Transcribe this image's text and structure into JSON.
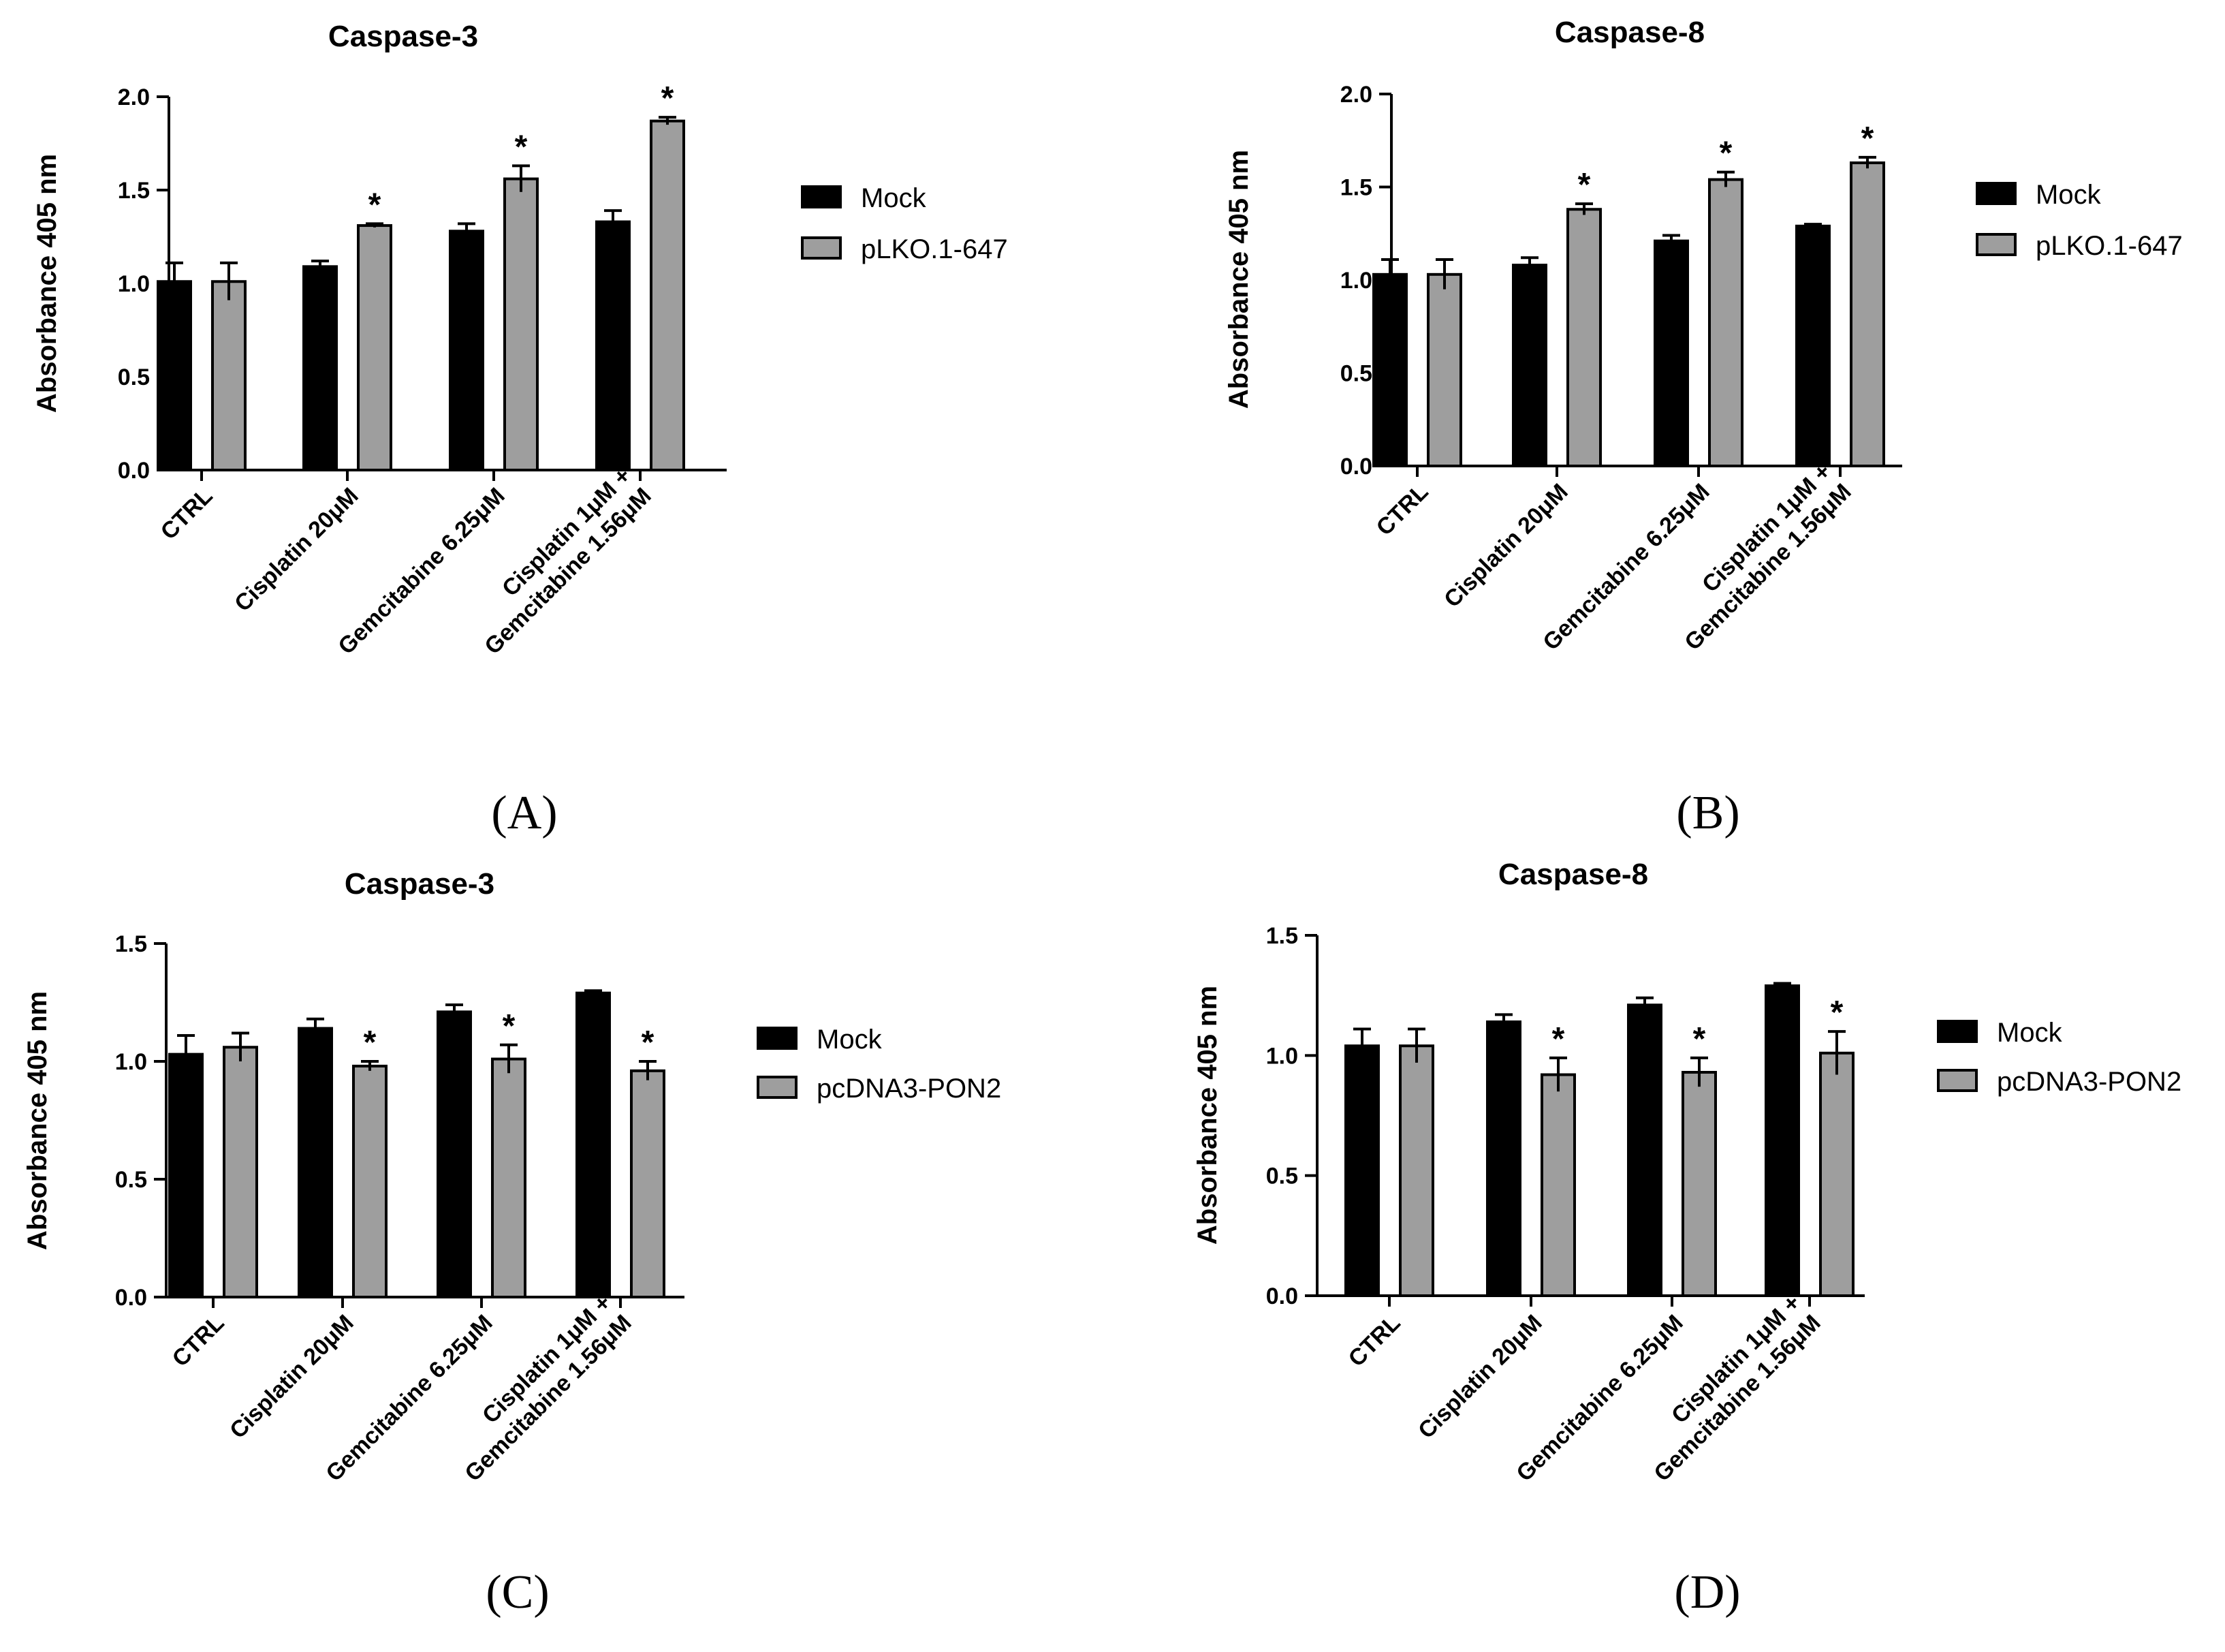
{
  "colors": {
    "mock": "#000000",
    "treated": "#9e9e9e",
    "axis": "#000000"
  },
  "chart_data": [
    {
      "type": "bar",
      "panel": "(A)",
      "title": "Caspase-3",
      "ylabel": "Absorbance 405 nm",
      "xlabel": "",
      "ylim": [
        0,
        2.0
      ],
      "yticks": [
        "0.0",
        "0.5",
        "1.0",
        "1.5",
        "2.0"
      ],
      "legend_position": "right",
      "categories": [
        [
          "CTRL"
        ],
        [
          "Cisplatin 20μM"
        ],
        [
          "Gemcitabine 6.25μM"
        ],
        [
          "Cisplatin 1μM +",
          "Gemcitabine 1.56μM"
        ]
      ],
      "series": [
        {
          "name": "Mock",
          "values": [
            1.01,
            1.09,
            1.28,
            1.33
          ],
          "errors": [
            0.1,
            0.03,
            0.04,
            0.06
          ],
          "marks": [
            "",
            "",
            "",
            ""
          ]
        },
        {
          "name": "pLKO.1-647",
          "values": [
            1.01,
            1.31,
            1.56,
            1.87
          ],
          "errors": [
            0.1,
            0.01,
            0.07,
            0.02
          ],
          "marks": [
            "",
            "*",
            "*",
            "*"
          ]
        }
      ]
    },
    {
      "type": "bar",
      "panel": "(B)",
      "title": "Caspase-8",
      "ylabel": "Absorbance 405 nm",
      "xlabel": "",
      "ylim": [
        0,
        2.0
      ],
      "yticks": [
        "0.0",
        "0.5",
        "1.0",
        "1.5",
        "2.0"
      ],
      "legend_position": "right",
      "categories": [
        [
          "CTRL"
        ],
        [
          "Cisplatin 20μM"
        ],
        [
          "Gemcitabine 6.25μM"
        ],
        [
          "Cisplatin 1μM +",
          "Gemcitabine 1.56μM"
        ]
      ],
      "series": [
        {
          "name": "Mock",
          "values": [
            1.03,
            1.08,
            1.21,
            1.29
          ],
          "errors": [
            0.08,
            0.04,
            0.03,
            0.01
          ],
          "marks": [
            "",
            "",
            "",
            ""
          ]
        },
        {
          "name": "pLKO.1-647",
          "values": [
            1.03,
            1.38,
            1.54,
            1.63
          ],
          "errors": [
            0.08,
            0.03,
            0.04,
            0.03
          ],
          "marks": [
            "",
            "*",
            "*",
            "*"
          ]
        }
      ]
    },
    {
      "type": "bar",
      "panel": "(C)",
      "title": "Caspase-3",
      "ylabel": "Absorbance 405 nm",
      "xlabel": "",
      "ylim": [
        0,
        1.5
      ],
      "yticks": [
        "0.0",
        "0.5",
        "1.0",
        "1.5"
      ],
      "legend_position": "right",
      "categories": [
        [
          "CTRL"
        ],
        [
          "Cisplatin 20μM"
        ],
        [
          "Gemcitabine 6.25μM"
        ],
        [
          "Cisplatin 1μM +",
          "Gemcitabine 1.56μM"
        ]
      ],
      "series": [
        {
          "name": "Mock",
          "values": [
            1.03,
            1.14,
            1.21,
            1.29
          ],
          "errors": [
            0.08,
            0.04,
            0.03,
            0.01
          ],
          "marks": [
            "",
            "",
            "",
            ""
          ]
        },
        {
          "name": "pcDNA3-PON2",
          "values": [
            1.06,
            0.98,
            1.01,
            0.96
          ],
          "errors": [
            0.06,
            0.02,
            0.06,
            0.04
          ],
          "marks": [
            "",
            "*",
            "*",
            "*"
          ]
        }
      ]
    },
    {
      "type": "bar",
      "panel": "(D)",
      "title": "Caspase-8",
      "ylabel": "Absorbance 405 nm",
      "xlabel": "",
      "ylim": [
        0,
        1.5
      ],
      "yticks": [
        "0.0",
        "0.5",
        "1.0",
        "1.5"
      ],
      "legend_position": "right",
      "categories": [
        [
          "CTRL"
        ],
        [
          "Cisplatin 20μM"
        ],
        [
          "Gemcitabine 6.25μM"
        ],
        [
          "Cisplatin 1μM +",
          "Gemcitabine 1.56μM"
        ]
      ],
      "series": [
        {
          "name": "Mock",
          "values": [
            1.04,
            1.14,
            1.21,
            1.29
          ],
          "errors": [
            0.07,
            0.03,
            0.03,
            0.01
          ],
          "marks": [
            "",
            "",
            "",
            ""
          ]
        },
        {
          "name": "pcDNA3-PON2",
          "values": [
            1.04,
            0.92,
            0.93,
            1.01
          ],
          "errors": [
            0.07,
            0.07,
            0.06,
            0.09
          ],
          "marks": [
            "",
            "*",
            "*",
            "*"
          ]
        }
      ]
    }
  ]
}
